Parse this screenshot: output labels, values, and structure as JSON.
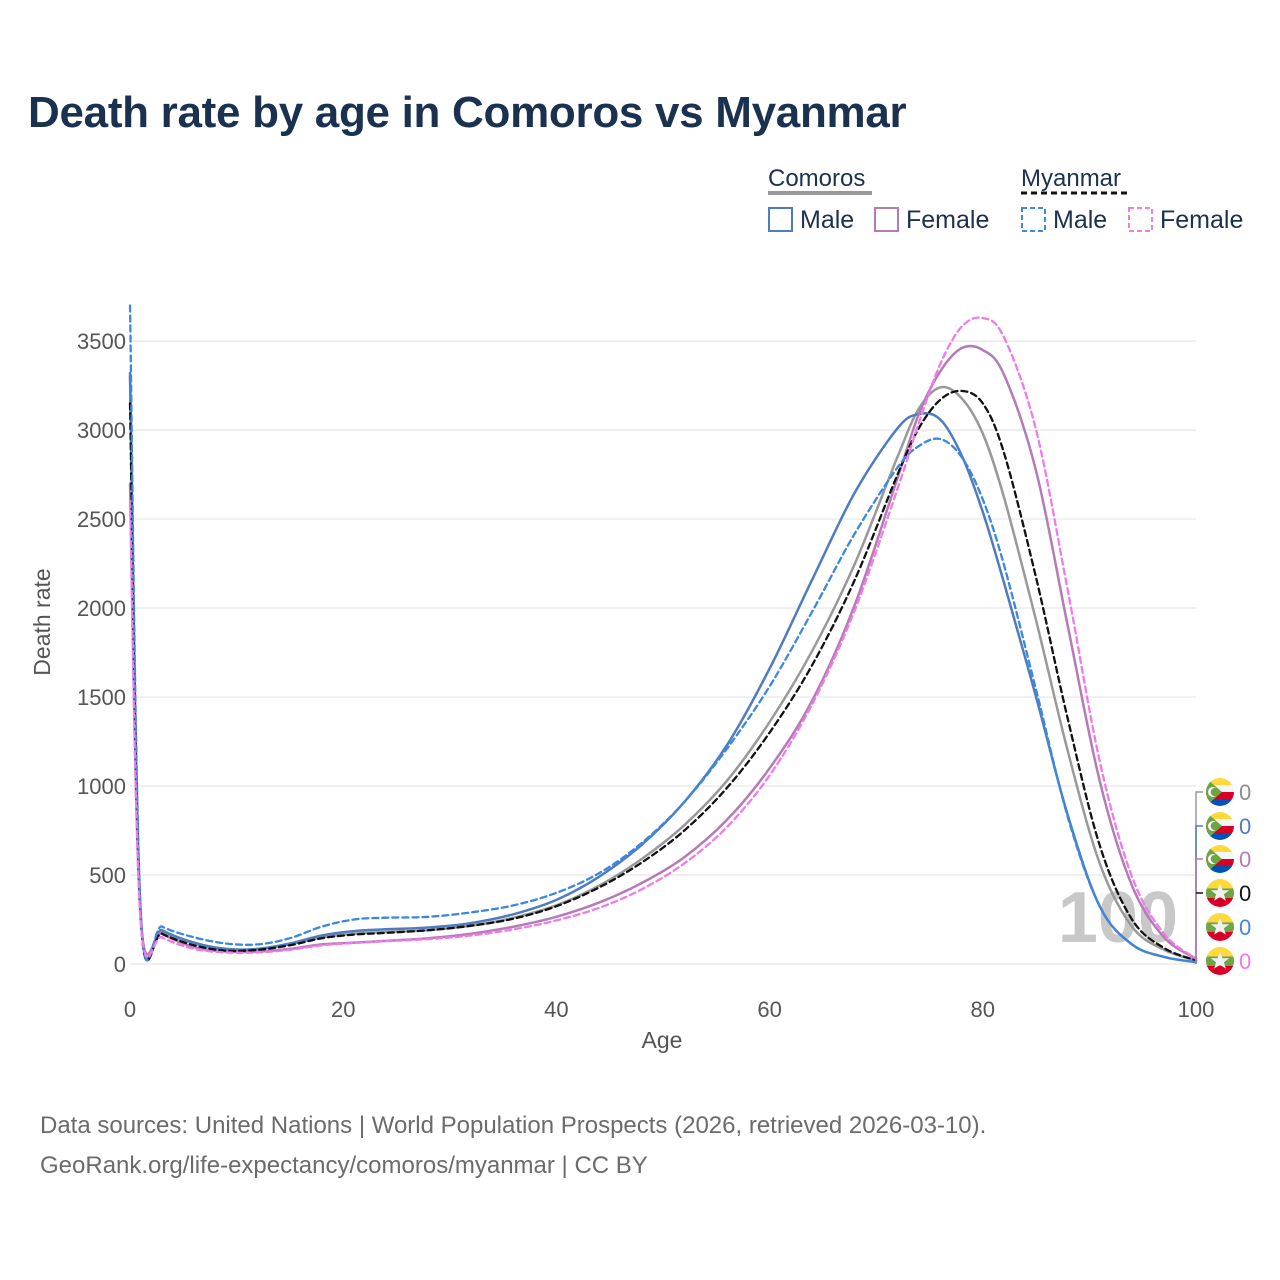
{
  "page": {
    "title": "Death rate by age in Comoros vs Myanmar",
    "sources_line1": "Data sources: United Nations | World Population Prospects (2026, retrieved 2026-03-10).",
    "sources_line2": "GeoRank.org/life-expectancy/comoros/myanmar | CC BY"
  },
  "legend": {
    "groups": [
      {
        "country": "Comoros",
        "style": "solid",
        "items": [
          {
            "label": "Male",
            "color": "#4f7cbf"
          },
          {
            "label": "Female",
            "color": "#b57bb6"
          }
        ]
      },
      {
        "country": "Myanmar",
        "style": "dashed",
        "items": [
          {
            "label": "Male",
            "color": "#3d87e0"
          },
          {
            "label": "Female",
            "color": "#f07ae6"
          }
        ]
      }
    ]
  },
  "chart_data": {
    "type": "line",
    "title": "Death rate by age in Comoros vs Myanmar",
    "xlabel": "Age",
    "ylabel": "Death rate",
    "xlim": [
      0,
      100
    ],
    "ylim": [
      0,
      3700
    ],
    "x_ticks": [
      0,
      20,
      40,
      60,
      80,
      100
    ],
    "y_ticks": [
      0,
      500,
      1000,
      1500,
      2000,
      2500,
      3000,
      3500
    ],
    "grid": true,
    "watermark": "100",
    "x": [
      0,
      1,
      3,
      6,
      9,
      12,
      15,
      18,
      21,
      24,
      28,
      32,
      36,
      40,
      44,
      48,
      52,
      56,
      60,
      64,
      68,
      72,
      74,
      76,
      78,
      80,
      82,
      85,
      88,
      91,
      94,
      97,
      100
    ],
    "series": [
      {
        "name": "Comoros Total",
        "country": "Comoros",
        "sex": "Total",
        "color": "#999999",
        "dash": "solid",
        "width": 2.5,
        "values": [
          3300,
          270,
          180,
          115,
          80,
          85,
          110,
          150,
          170,
          180,
          190,
          215,
          260,
          330,
          440,
          590,
          780,
          1030,
          1360,
          1760,
          2250,
          2850,
          3120,
          3240,
          3180,
          2980,
          2620,
          1930,
          1190,
          560,
          210,
          80,
          20
        ]
      },
      {
        "name": "Comoros Male",
        "country": "Comoros",
        "sex": "Male",
        "color": "#4f7cbf",
        "dash": "solid",
        "width": 2.5,
        "values": [
          3320,
          280,
          190,
          120,
          85,
          85,
          115,
          160,
          185,
          195,
          205,
          230,
          280,
          360,
          490,
          670,
          910,
          1230,
          1660,
          2160,
          2650,
          3010,
          3090,
          3060,
          2860,
          2540,
          2140,
          1500,
          830,
          320,
          110,
          40,
          10
        ]
      },
      {
        "name": "Comoros Female",
        "country": "Comoros",
        "sex": "Female",
        "color": "#b57bb6",
        "dash": "solid",
        "width": 2.5,
        "values": [
          2700,
          260,
          170,
          95,
          70,
          70,
          85,
          110,
          120,
          130,
          145,
          170,
          210,
          265,
          345,
          455,
          600,
          810,
          1100,
          1480,
          2020,
          2730,
          3090,
          3330,
          3460,
          3450,
          3310,
          2770,
          1890,
          1020,
          440,
          150,
          30
        ]
      },
      {
        "name": "Myanmar Total",
        "country": "Myanmar",
        "sex": "Total",
        "color": "#111111",
        "dash": "dashed",
        "width": 2.3,
        "values": [
          3150,
          260,
          170,
          105,
          75,
          80,
          105,
          145,
          165,
          175,
          190,
          215,
          255,
          325,
          430,
          570,
          750,
          990,
          1300,
          1680,
          2160,
          2750,
          3010,
          3170,
          3220,
          3150,
          2870,
          2170,
          1370,
          660,
          250,
          90,
          20
        ]
      },
      {
        "name": "Myanmar Male",
        "country": "Myanmar",
        "sex": "Male",
        "color": "#3d87e0",
        "dash": "dashed",
        "width": 2.3,
        "values": [
          3700,
          300,
          210,
          150,
          115,
          110,
          145,
          210,
          250,
          260,
          265,
          290,
          330,
          400,
          510,
          680,
          910,
          1210,
          1560,
          1980,
          2420,
          2790,
          2910,
          2950,
          2850,
          2610,
          2240,
          1540,
          820,
          320,
          110,
          40,
          10
        ]
      },
      {
        "name": "Myanmar Female",
        "country": "Myanmar",
        "sex": "Female",
        "color": "#f07ae6",
        "dash": "dashed",
        "width": 2.3,
        "values": [
          2600,
          240,
          150,
          85,
          65,
          65,
          80,
          105,
          118,
          128,
          140,
          160,
          195,
          245,
          315,
          420,
          565,
          770,
          1060,
          1460,
          1990,
          2670,
          3040,
          3370,
          3580,
          3630,
          3520,
          3000,
          2090,
          1130,
          490,
          170,
          30
        ]
      }
    ],
    "end_markers": [
      {
        "country": "Comoros",
        "value": "0",
        "color": "#8c8c8c"
      },
      {
        "country": "Comoros",
        "value": "0",
        "color": "#4f7cbf"
      },
      {
        "country": "Comoros",
        "value": "0",
        "color": "#b57bb6"
      },
      {
        "country": "Myanmar",
        "value": "0",
        "color": "#111111"
      },
      {
        "country": "Myanmar",
        "value": "0",
        "color": "#3d87e0"
      },
      {
        "country": "Myanmar",
        "value": "0",
        "color": "#f07ae6"
      }
    ]
  }
}
